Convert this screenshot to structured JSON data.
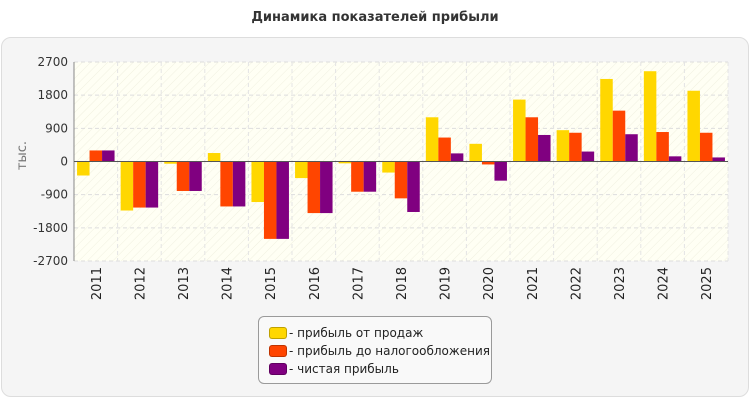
{
  "chart_data": {
    "type": "bar",
    "title": "Динамика показателей прибыли",
    "ylabel": "тыс.",
    "xlabel": "",
    "ylim": [
      -2700,
      2700
    ],
    "yticks": [
      2700,
      1800,
      900,
      0,
      -900,
      -1800,
      -2700
    ],
    "grid": true,
    "legend_position": "bottom",
    "categories": [
      "2011",
      "2012",
      "2013",
      "2014",
      "2015",
      "2016",
      "2017",
      "2018",
      "2019",
      "2020",
      "2021",
      "2022",
      "2023",
      "2024",
      "2025"
    ],
    "series": [
      {
        "name": "- прибыль от продаж",
        "color": "#ffd700",
        "values": [
          -380,
          -1330,
          -60,
          230,
          -1100,
          -450,
          -50,
          -300,
          1200,
          480,
          1680,
          850,
          2240,
          2450,
          1920
        ]
      },
      {
        "name": "- прибыль до налогообложения",
        "color": "#ff4500",
        "values": [
          300,
          -1250,
          -800,
          -1220,
          -2100,
          -1400,
          -820,
          -1000,
          650,
          -80,
          1200,
          780,
          1380,
          800,
          780
        ]
      },
      {
        "name": "- чистая прибыль",
        "color": "#800080",
        "values": [
          300,
          -1250,
          -800,
          -1220,
          -2100,
          -1400,
          -820,
          -1370,
          220,
          -520,
          720,
          270,
          740,
          140,
          110
        ]
      }
    ]
  }
}
